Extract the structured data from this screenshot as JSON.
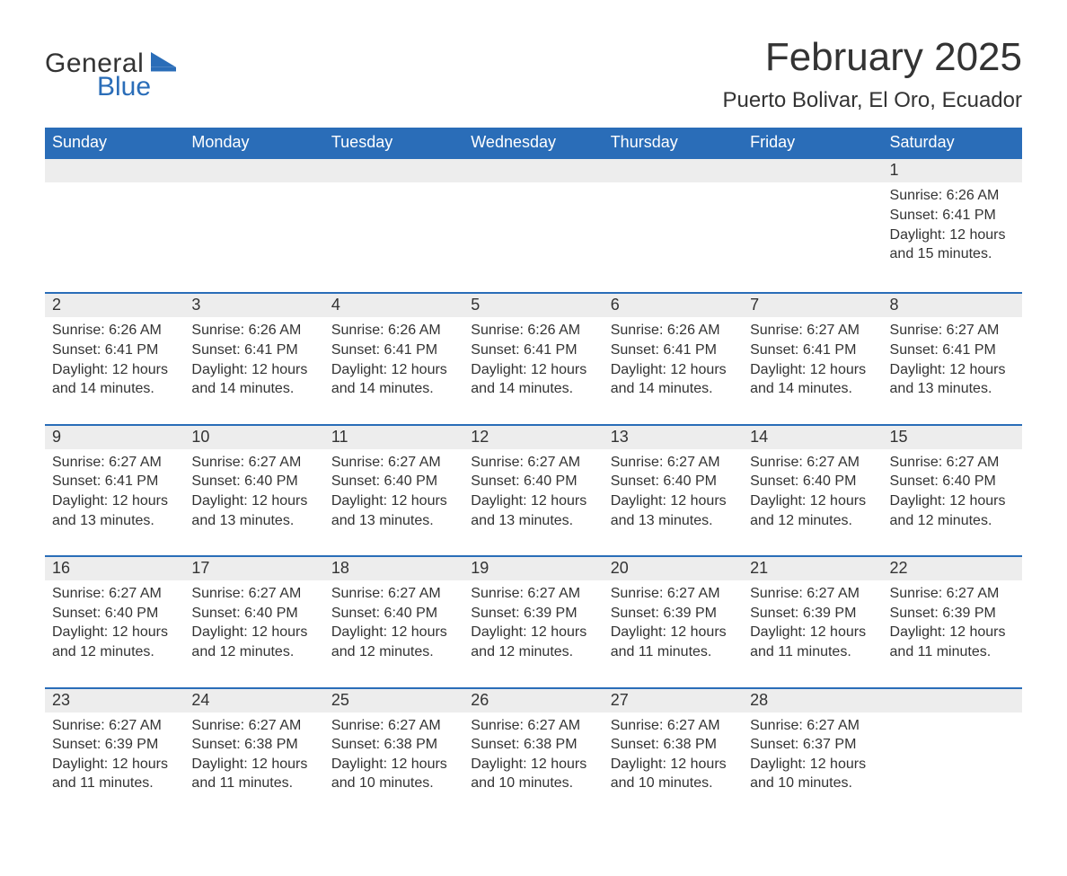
{
  "brand": {
    "name_part1": "General",
    "name_part2": "Blue",
    "accent_color": "#2a6db8",
    "text_color": "#333333"
  },
  "title": "February 2025",
  "location": "Puerto Bolivar, El Oro, Ecuador",
  "theme": {
    "header_bg": "#2a6db8",
    "header_fg": "#ffffff",
    "daynum_bg": "#ededed",
    "row_border": "#2a6db8",
    "page_bg": "#ffffff",
    "body_text": "#333333"
  },
  "day_names": [
    "Sunday",
    "Monday",
    "Tuesday",
    "Wednesday",
    "Thursday",
    "Friday",
    "Saturday"
  ],
  "weeks": [
    [
      {
        "empty": true
      },
      {
        "empty": true
      },
      {
        "empty": true
      },
      {
        "empty": true
      },
      {
        "empty": true
      },
      {
        "empty": true
      },
      {
        "num": "1",
        "sunrise": "Sunrise: 6:26 AM",
        "sunset": "Sunset: 6:41 PM",
        "daylight": "Daylight: 12 hours and 15 minutes."
      }
    ],
    [
      {
        "num": "2",
        "sunrise": "Sunrise: 6:26 AM",
        "sunset": "Sunset: 6:41 PM",
        "daylight": "Daylight: 12 hours and 14 minutes."
      },
      {
        "num": "3",
        "sunrise": "Sunrise: 6:26 AM",
        "sunset": "Sunset: 6:41 PM",
        "daylight": "Daylight: 12 hours and 14 minutes."
      },
      {
        "num": "4",
        "sunrise": "Sunrise: 6:26 AM",
        "sunset": "Sunset: 6:41 PM",
        "daylight": "Daylight: 12 hours and 14 minutes."
      },
      {
        "num": "5",
        "sunrise": "Sunrise: 6:26 AM",
        "sunset": "Sunset: 6:41 PM",
        "daylight": "Daylight: 12 hours and 14 minutes."
      },
      {
        "num": "6",
        "sunrise": "Sunrise: 6:26 AM",
        "sunset": "Sunset: 6:41 PM",
        "daylight": "Daylight: 12 hours and 14 minutes."
      },
      {
        "num": "7",
        "sunrise": "Sunrise: 6:27 AM",
        "sunset": "Sunset: 6:41 PM",
        "daylight": "Daylight: 12 hours and 14 minutes."
      },
      {
        "num": "8",
        "sunrise": "Sunrise: 6:27 AM",
        "sunset": "Sunset: 6:41 PM",
        "daylight": "Daylight: 12 hours and 13 minutes."
      }
    ],
    [
      {
        "num": "9",
        "sunrise": "Sunrise: 6:27 AM",
        "sunset": "Sunset: 6:41 PM",
        "daylight": "Daylight: 12 hours and 13 minutes."
      },
      {
        "num": "10",
        "sunrise": "Sunrise: 6:27 AM",
        "sunset": "Sunset: 6:40 PM",
        "daylight": "Daylight: 12 hours and 13 minutes."
      },
      {
        "num": "11",
        "sunrise": "Sunrise: 6:27 AM",
        "sunset": "Sunset: 6:40 PM",
        "daylight": "Daylight: 12 hours and 13 minutes."
      },
      {
        "num": "12",
        "sunrise": "Sunrise: 6:27 AM",
        "sunset": "Sunset: 6:40 PM",
        "daylight": "Daylight: 12 hours and 13 minutes."
      },
      {
        "num": "13",
        "sunrise": "Sunrise: 6:27 AM",
        "sunset": "Sunset: 6:40 PM",
        "daylight": "Daylight: 12 hours and 13 minutes."
      },
      {
        "num": "14",
        "sunrise": "Sunrise: 6:27 AM",
        "sunset": "Sunset: 6:40 PM",
        "daylight": "Daylight: 12 hours and 12 minutes."
      },
      {
        "num": "15",
        "sunrise": "Sunrise: 6:27 AM",
        "sunset": "Sunset: 6:40 PM",
        "daylight": "Daylight: 12 hours and 12 minutes."
      }
    ],
    [
      {
        "num": "16",
        "sunrise": "Sunrise: 6:27 AM",
        "sunset": "Sunset: 6:40 PM",
        "daylight": "Daylight: 12 hours and 12 minutes."
      },
      {
        "num": "17",
        "sunrise": "Sunrise: 6:27 AM",
        "sunset": "Sunset: 6:40 PM",
        "daylight": "Daylight: 12 hours and 12 minutes."
      },
      {
        "num": "18",
        "sunrise": "Sunrise: 6:27 AM",
        "sunset": "Sunset: 6:40 PM",
        "daylight": "Daylight: 12 hours and 12 minutes."
      },
      {
        "num": "19",
        "sunrise": "Sunrise: 6:27 AM",
        "sunset": "Sunset: 6:39 PM",
        "daylight": "Daylight: 12 hours and 12 minutes."
      },
      {
        "num": "20",
        "sunrise": "Sunrise: 6:27 AM",
        "sunset": "Sunset: 6:39 PM",
        "daylight": "Daylight: 12 hours and 11 minutes."
      },
      {
        "num": "21",
        "sunrise": "Sunrise: 6:27 AM",
        "sunset": "Sunset: 6:39 PM",
        "daylight": "Daylight: 12 hours and 11 minutes."
      },
      {
        "num": "22",
        "sunrise": "Sunrise: 6:27 AM",
        "sunset": "Sunset: 6:39 PM",
        "daylight": "Daylight: 12 hours and 11 minutes."
      }
    ],
    [
      {
        "num": "23",
        "sunrise": "Sunrise: 6:27 AM",
        "sunset": "Sunset: 6:39 PM",
        "daylight": "Daylight: 12 hours and 11 minutes."
      },
      {
        "num": "24",
        "sunrise": "Sunrise: 6:27 AM",
        "sunset": "Sunset: 6:38 PM",
        "daylight": "Daylight: 12 hours and 11 minutes."
      },
      {
        "num": "25",
        "sunrise": "Sunrise: 6:27 AM",
        "sunset": "Sunset: 6:38 PM",
        "daylight": "Daylight: 12 hours and 10 minutes."
      },
      {
        "num": "26",
        "sunrise": "Sunrise: 6:27 AM",
        "sunset": "Sunset: 6:38 PM",
        "daylight": "Daylight: 12 hours and 10 minutes."
      },
      {
        "num": "27",
        "sunrise": "Sunrise: 6:27 AM",
        "sunset": "Sunset: 6:38 PM",
        "daylight": "Daylight: 12 hours and 10 minutes."
      },
      {
        "num": "28",
        "sunrise": "Sunrise: 6:27 AM",
        "sunset": "Sunset: 6:37 PM",
        "daylight": "Daylight: 12 hours and 10 minutes."
      },
      {
        "empty": true
      }
    ]
  ]
}
